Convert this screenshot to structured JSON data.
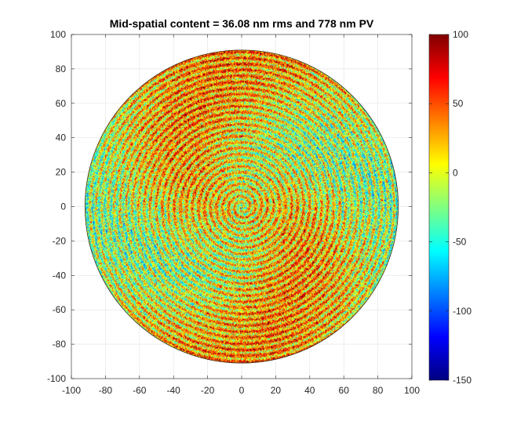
{
  "chart_data": {
    "type": "heatmap",
    "subtype": "circular surface map",
    "title": "Mid-spatial content = 36.08 nm rms and 778 nm PV",
    "xlabel": "",
    "ylabel": "",
    "xlim": [
      -100,
      100
    ],
    "ylim": [
      -100,
      100
    ],
    "x_ticks": [
      -100,
      -80,
      -60,
      -40,
      -20,
      0,
      20,
      40,
      60,
      80,
      100
    ],
    "y_ticks": [
      -100,
      -80,
      -60,
      -40,
      -20,
      0,
      20,
      40,
      60,
      80,
      100
    ],
    "grid": true,
    "aperture_radius": 92,
    "aperture_center": [
      0,
      0
    ],
    "colormap": "jet",
    "colorbar": {
      "min": -150,
      "max": 100,
      "ticks": [
        -150,
        -100,
        -50,
        0,
        50,
        100
      ],
      "colors": [
        "#00008f",
        "#0000ff",
        "#00ffff",
        "#ffff00",
        "#ff0000",
        "#800000"
      ]
    },
    "rms_nm": 36.08,
    "pv_nm": 778
  }
}
